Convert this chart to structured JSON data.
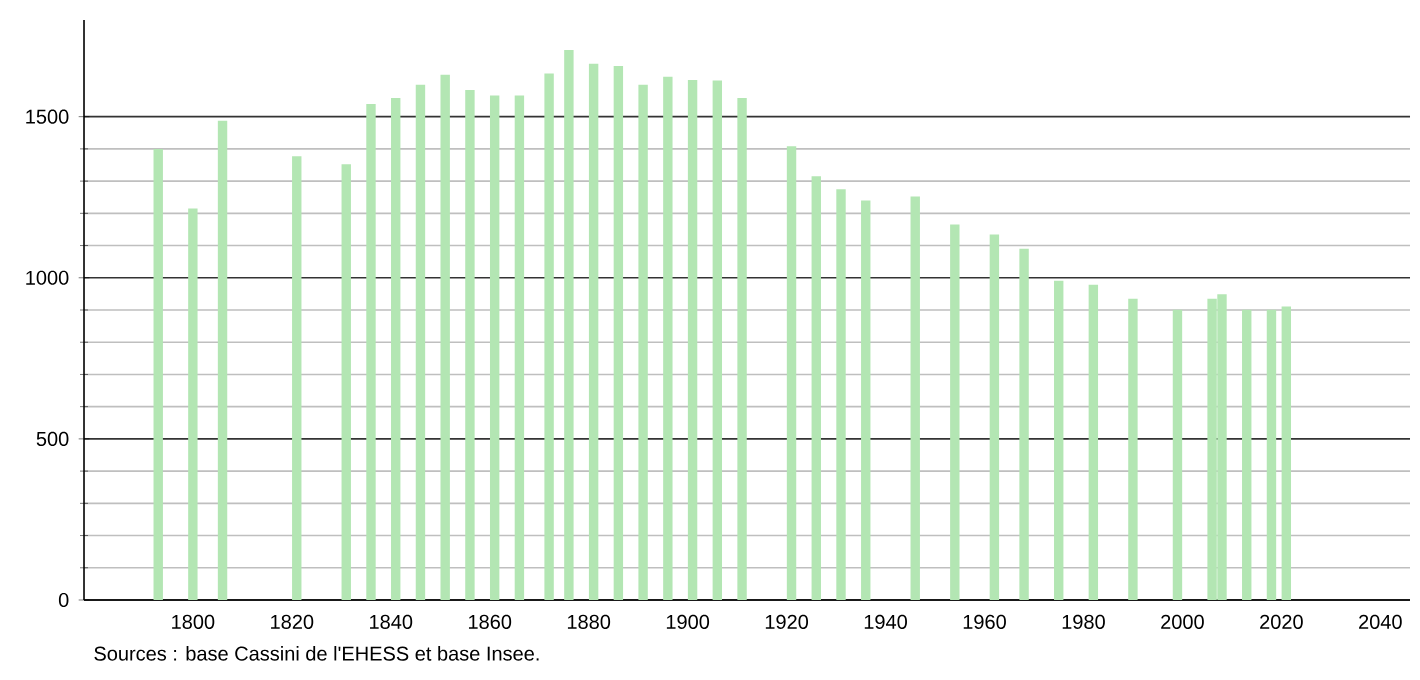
{
  "chart_data": {
    "type": "bar",
    "color": "#b3e6b3",
    "x": [
      1793,
      1800,
      1806,
      1821,
      1831,
      1836,
      1841,
      1846,
      1851,
      1856,
      1861,
      1866,
      1872,
      1876,
      1881,
      1886,
      1891,
      1896,
      1901,
      1906,
      1911,
      1921,
      1926,
      1931,
      1936,
      1946,
      1954,
      1962,
      1968,
      1975,
      1982,
      1990,
      1999,
      2006,
      2008,
      2013,
      2018,
      2021
    ],
    "values": [
      1400,
      1215,
      1487,
      1377,
      1352,
      1539,
      1558,
      1599,
      1630,
      1583,
      1566,
      1566,
      1634,
      1707,
      1664,
      1657,
      1599,
      1624,
      1614,
      1612,
      1558,
      1408,
      1315,
      1275,
      1240,
      1252,
      1165,
      1134,
      1090,
      991,
      978,
      935,
      901,
      935,
      949,
      901,
      901,
      911
    ],
    "xlim": [
      1778,
      2046
    ],
    "ylim": [
      0,
      1800
    ],
    "xticks": [
      1800,
      1820,
      1840,
      1860,
      1880,
      1900,
      1920,
      1940,
      1960,
      1980,
      2000,
      2020,
      2040
    ],
    "yticks": [
      0,
      500,
      1000,
      1500
    ],
    "grid": "y",
    "annotations": [
      "Sources : base Cassini de l'EHESS et base Insee."
    ]
  }
}
